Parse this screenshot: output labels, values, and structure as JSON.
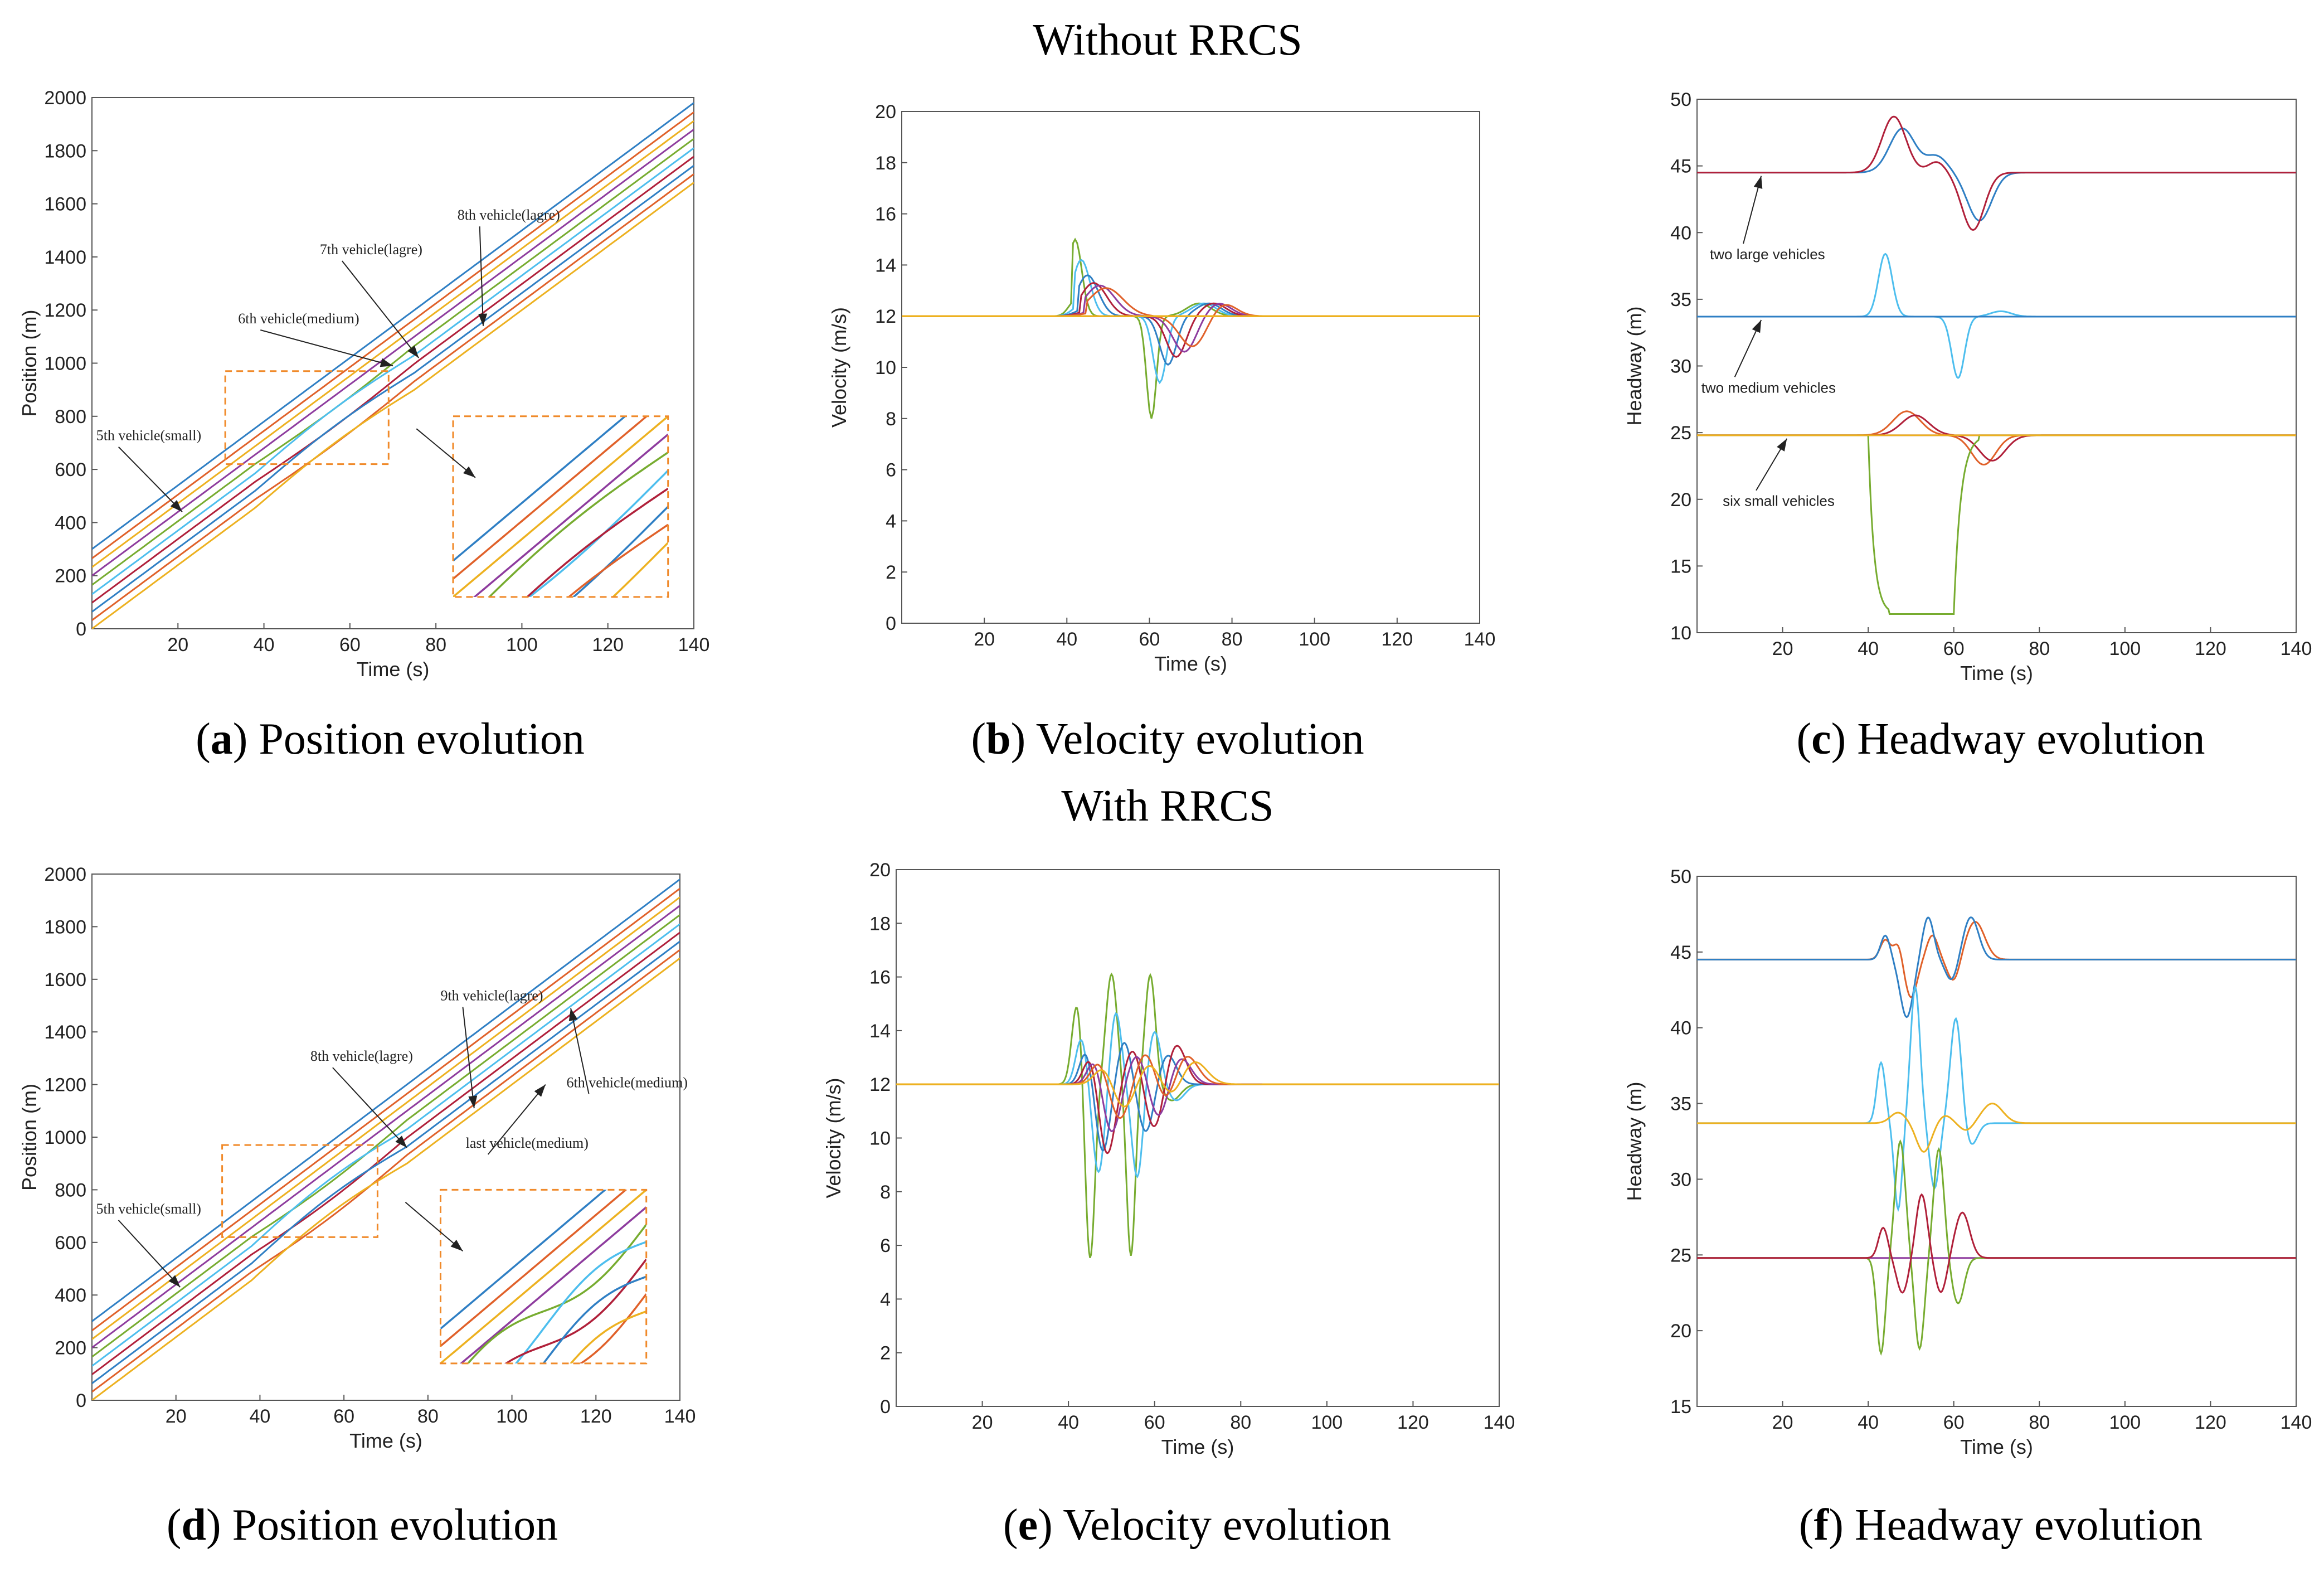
{
  "section_titles": {
    "top": "Without RRCS",
    "bottom": "With RRCS"
  },
  "colors": {
    "matlab": [
      "#0072BD",
      "#D95319",
      "#EDB120",
      "#7E2F8E",
      "#77AC30",
      "#4DBEEE",
      "#A2142F"
    ],
    "blue": "#2F7FC4",
    "orange": "#E0612A",
    "yellow": "#EDB120",
    "purple": "#8E3C9E",
    "green": "#77AC30",
    "cyan": "#4DBEEE",
    "red": "#B0203A",
    "inset": "#F08A2A"
  },
  "chart_data": [
    {
      "id": "a",
      "type": "line",
      "caption_letter": "a",
      "caption_text": " Position evolution",
      "xlabel": "Time (s)",
      "ylabel": "Position (m)",
      "xlim": [
        0,
        140
      ],
      "ylim": [
        0,
        2000
      ],
      "xticks": [
        20,
        40,
        60,
        80,
        100,
        120,
        140
      ],
      "yticks": [
        0,
        200,
        400,
        600,
        800,
        1000,
        1200,
        1400,
        1600,
        1800,
        2000
      ],
      "series_intercepts": [
        300,
        265,
        232,
        200,
        165,
        130,
        98,
        64,
        32,
        0
      ],
      "speed_m_per_s": 12,
      "annotations": [
        {
          "text": "8th vehicle(lagre)",
          "tx": 85,
          "ty": 1540,
          "ax": 91,
          "ay": 1140,
          "font": "serif"
        },
        {
          "text": "7th vehicle(lagre)",
          "tx": 53,
          "ty": 1410,
          "ax": 76,
          "ay": 1020,
          "font": "serif"
        },
        {
          "text": "6th vehicle(medium)",
          "tx": 34,
          "ty": 1150,
          "ax": 70,
          "ay": 990,
          "font": "serif"
        },
        {
          "text": "5th vehicle(small)",
          "tx": 1,
          "ty": 710,
          "ax": 21,
          "ay": 440,
          "font": "serif"
        }
      ],
      "inset_source": {
        "x0": 31,
        "x1": 69,
        "y0": 620,
        "y1": 970
      },
      "inset_target": {
        "x0": 84,
        "x1": 134,
        "y0": 120,
        "y1": 800
      }
    },
    {
      "id": "b",
      "type": "line",
      "caption_letter": "b",
      "caption_text": " Velocity evolution",
      "xlabel": "Time (s)",
      "ylabel": "Velocity (m/s)",
      "xlim": [
        0,
        140
      ],
      "ylim": [
        0,
        20
      ],
      "xticks": [
        20,
        40,
        60,
        80,
        100,
        120,
        140
      ],
      "yticks": [
        0,
        2,
        4,
        6,
        8,
        10,
        12,
        14,
        16,
        18,
        20
      ],
      "baseline": 12,
      "series_params": [
        {
          "delay": 0,
          "amp": 3,
          "dip_t": 60.5,
          "dip": 4
        },
        {
          "delay": 1.5,
          "amp": 2.2,
          "dip_t": 62.5,
          "dip": 2.6
        },
        {
          "delay": 3,
          "amp": 1.6,
          "dip_t": 64.5,
          "dip": 1.9
        },
        {
          "delay": 4.5,
          "amp": 1.3,
          "dip_t": 66.5,
          "dip": 1.6
        },
        {
          "delay": 6,
          "amp": 1.2,
          "dip_t": 68.5,
          "dip": 1.4
        },
        {
          "delay": 7.5,
          "amp": 1.1,
          "dip_t": 70.5,
          "dip": 1.2
        }
      ]
    },
    {
      "id": "c",
      "type": "line",
      "caption_letter": "c",
      "caption_text": " Headway evolution",
      "xlabel": "Time (s)",
      "ylabel": "Headway (m)",
      "xlim": [
        0,
        140
      ],
      "ylim": [
        10,
        50
      ],
      "xticks": [
        20,
        40,
        60,
        80,
        100,
        120,
        140
      ],
      "yticks": [
        10,
        15,
        20,
        25,
        30,
        35,
        40,
        45,
        50
      ],
      "levels": {
        "large": 44.5,
        "medium": 33.7,
        "small": 24.8
      },
      "annotations": [
        {
          "text": "two large vehicles",
          "tx": 3,
          "ty": 38,
          "ax": 15,
          "ay": 44.5
        },
        {
          "text": "two medium vehicles",
          "tx": 1,
          "ty": 28,
          "ax": 15,
          "ay": 33.7
        },
        {
          "text": "six small vehicles",
          "tx": 6,
          "ty": 19.5,
          "ax": 21,
          "ay": 24.8
        }
      ]
    },
    {
      "id": "d",
      "type": "line",
      "caption_letter": "d",
      "caption_text": " Position evolution",
      "xlabel": "Time (s)",
      "ylabel": "Position (m)",
      "xlim": [
        0,
        140
      ],
      "ylim": [
        0,
        2000
      ],
      "xticks": [
        20,
        40,
        60,
        80,
        100,
        120,
        140
      ],
      "yticks": [
        0,
        200,
        400,
        600,
        800,
        1000,
        1200,
        1400,
        1600,
        1800,
        2000
      ],
      "series_intercepts": [
        300,
        265,
        232,
        200,
        165,
        130,
        98,
        64,
        32,
        0
      ],
      "speed_m_per_s": 12,
      "annotations": [
        {
          "text": "9th vehicle(lagre)",
          "tx": 83,
          "ty": 1520,
          "ax": 91,
          "ay": 1110,
          "font": "serif"
        },
        {
          "text": "8th vehicle(lagre)",
          "tx": 52,
          "ty": 1290,
          "ax": 75,
          "ay": 960,
          "font": "serif"
        },
        {
          "text": "6th vehicle(medium)",
          "tx": 113,
          "ty": 1190,
          "ax": 114,
          "ay": 1490,
          "font": "serif"
        },
        {
          "text": "last vehicle(medium)",
          "tx": 89,
          "ty": 960,
          "ax": 108,
          "ay": 1200,
          "font": "serif"
        },
        {
          "text": "5th vehicle(small)",
          "tx": 1,
          "ty": 710,
          "ax": 21,
          "ay": 430,
          "font": "serif"
        }
      ],
      "inset_source": {
        "x0": 31,
        "x1": 68,
        "y0": 620,
        "y1": 970
      },
      "inset_target": {
        "x0": 83,
        "x1": 132,
        "y0": 140,
        "y1": 800
      }
    },
    {
      "id": "e",
      "type": "line",
      "caption_letter": "e",
      "caption_text": " Velocity evolution",
      "xlabel": "Time (s)",
      "ylabel": "Velocity (m/s)",
      "xlim": [
        0,
        140
      ],
      "ylim": [
        0,
        20
      ],
      "xticks": [
        20,
        40,
        60,
        80,
        100,
        120,
        140
      ],
      "yticks": [
        0,
        2,
        4,
        6,
        8,
        10,
        12,
        14,
        16,
        18,
        20
      ],
      "baseline": 12
    },
    {
      "id": "f",
      "type": "line",
      "caption_letter": "f",
      "caption_text": " Headway evolution",
      "xlabel": "Time (s)",
      "ylabel": "Headway (m)",
      "xlim": [
        0,
        140
      ],
      "ylim": [
        15,
        50
      ],
      "xticks": [
        20,
        40,
        60,
        80,
        100,
        120,
        140
      ],
      "yticks": [
        15,
        20,
        25,
        30,
        35,
        40,
        45,
        50
      ],
      "levels": {
        "large": 44.5,
        "medium": 33.7,
        "small": 24.8
      }
    }
  ]
}
